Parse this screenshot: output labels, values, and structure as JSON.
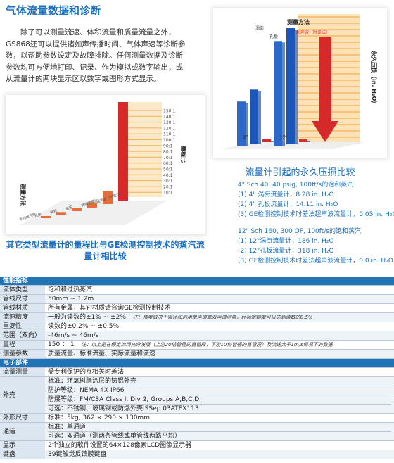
{
  "heading": "气体流量数据和诊断",
  "intro": "除了可以测量流速、体积流量和质量流量之外，GS868还可以提供诸如声传播时间、气体声速等诊断参数，以帮助参数设定及故障排除。任何测量数据及诊断参数均可方便地打印、记录、作为模拟或数字输出，或从流量计的两块显示区以数字或图形方式显示。",
  "pressure_loss": {
    "title": "流量计引起的永久压损比较",
    "notes_a": [
      "4\" Sch 40, 40 psig, 100ft/s的饱和蒸汽",
      "(1) 4\" 涡街流量计，8.28 in. H₂O",
      "(2) 4\" 孔板流量计，14.11 in. H₂O",
      "(3) GE检测控制技术时差法超声波流量计，0.05 in. H₂O"
    ],
    "notes_b": [
      "12\" Sch 160, 300 OF, 100ft/s的饱和蒸汽",
      "(1) 12\"涡街流量计，186 in. H₂O",
      "(2) 12\"孔板流量计，318 in. H₂O",
      "(3) GE检测控制技术时差法超声波流量计，0.0 in. H₂O"
    ]
  },
  "chart_data": [
    {
      "type": "bar",
      "title": "流量计引起的永久压损比较",
      "ylabel": "永久压损（in. H₂O）",
      "xlabel": "测量方法",
      "categories": [
        "4\"",
        "12\""
      ],
      "series": [
        {
          "name": "涡街",
          "values": [
            8.28,
            186
          ]
        },
        {
          "name": "孔板",
          "values": [
            14.11,
            318
          ]
        },
        {
          "name": "超声波（时差法）",
          "values": [
            0.05,
            0.0
          ]
        }
      ],
      "chart_labels": {
        "x": "测量方法",
        "s1": "涡街",
        "s2": "孔板",
        "s3": "超声波（时差法）",
        "c1": "4\"",
        "c2": "12\"",
        "y": "永久压损（in. H₂O）"
      }
    },
    {
      "type": "bar",
      "title": "其它类型流量计的量程比与GE检测控制技术的蒸汽流量计相比较",
      "ylabel": "量程比",
      "xlabel": "测量方法",
      "categories": [
        "平均皮托管",
        "孔板",
        "涡轮",
        "差压",
        "涡街流量计",
        "超声波（时差法）"
      ],
      "values": [
        3,
        4,
        5,
        8,
        20,
        150
      ],
      "ticks": [
        "150:1",
        "140:1",
        "130:1",
        "120:1",
        "110:1",
        "100:1",
        "90:1",
        "80:1",
        "70:1",
        "60:1",
        "50:1",
        "40:1",
        "30:1",
        "20:1",
        "10:1"
      ],
      "chart_labels": {
        "y": "量程比",
        "x": "测量方法",
        "c1": "平均皮托管",
        "c2": "孔板",
        "c3": "涡轮",
        "c4": "差压",
        "c5": "涡街流量计",
        "c6": "超声波（时差法）"
      }
    }
  ],
  "range_title": "其它类型流量计的量程比与GE检测控制技术的蒸汽流量计相比较",
  "table": {
    "sections": [
      {
        "title": "性能指标",
        "rows": [
          {
            "k": "流体类型",
            "v": "饱和和过热蒸汽"
          },
          {
            "k": "管线尺寸",
            "v": "50mm ~ 1.2m"
          },
          {
            "k": "管线材质",
            "v": "所有金属，其它材质请咨询GE检测控制技术"
          },
          {
            "k": "流速精度",
            "v": "一般为读数的±1% ~ ±2%",
            "note": "注：精度取决于管径和选用单声道或双声道测量，经标定精度可以达到读数的0.5%"
          },
          {
            "k": "重复性",
            "v": "读数的±0.2% ~ ±0.5%"
          },
          {
            "k": "范围（双向）",
            "v": "-46m/s ~ 46m/s"
          },
          {
            "k": "量程",
            "v": "150 ： 1",
            "note": "注：以上是在假定流场充分发展（上游20倍管径的直管段，下游10倍管径的直管段）及流速大于1m/s情况下的数据"
          },
          {
            "k": "测量参数",
            "v": "质量流量、标准流量、实际流量和流速"
          }
        ]
      },
      {
        "title": "电子部件",
        "rows": [
          {
            "k": "流量测量",
            "v": "受专利保护的互相关时差法"
          },
          {
            "k": "外壳",
            "lines": [
              "标准：环氧树脂涂层的铸铝外壳",
              "防护等级：NEMA 4X IP66",
              "防爆等级：FM/CSA Class I, Div 2, Groups A,B,C,D",
              "可选：不锈钢、玻璃钢或防爆外壳ISSep 03ATEX113"
            ]
          },
          {
            "k": "外形尺寸",
            "v": "标准：5kg, 362 × 290 × 130mm"
          },
          {
            "k": "通道",
            "lines": [
              "标准：单通道",
              "可选：双通道（测两条管线或单管线两路平均）"
            ]
          },
          {
            "k": "显示",
            "v": "2个独立的软件设置的64×128像素LCD图像显示器"
          },
          {
            "k": "键盘",
            "v": "39键触觉反馈膜键盘"
          }
        ]
      }
    ]
  }
}
